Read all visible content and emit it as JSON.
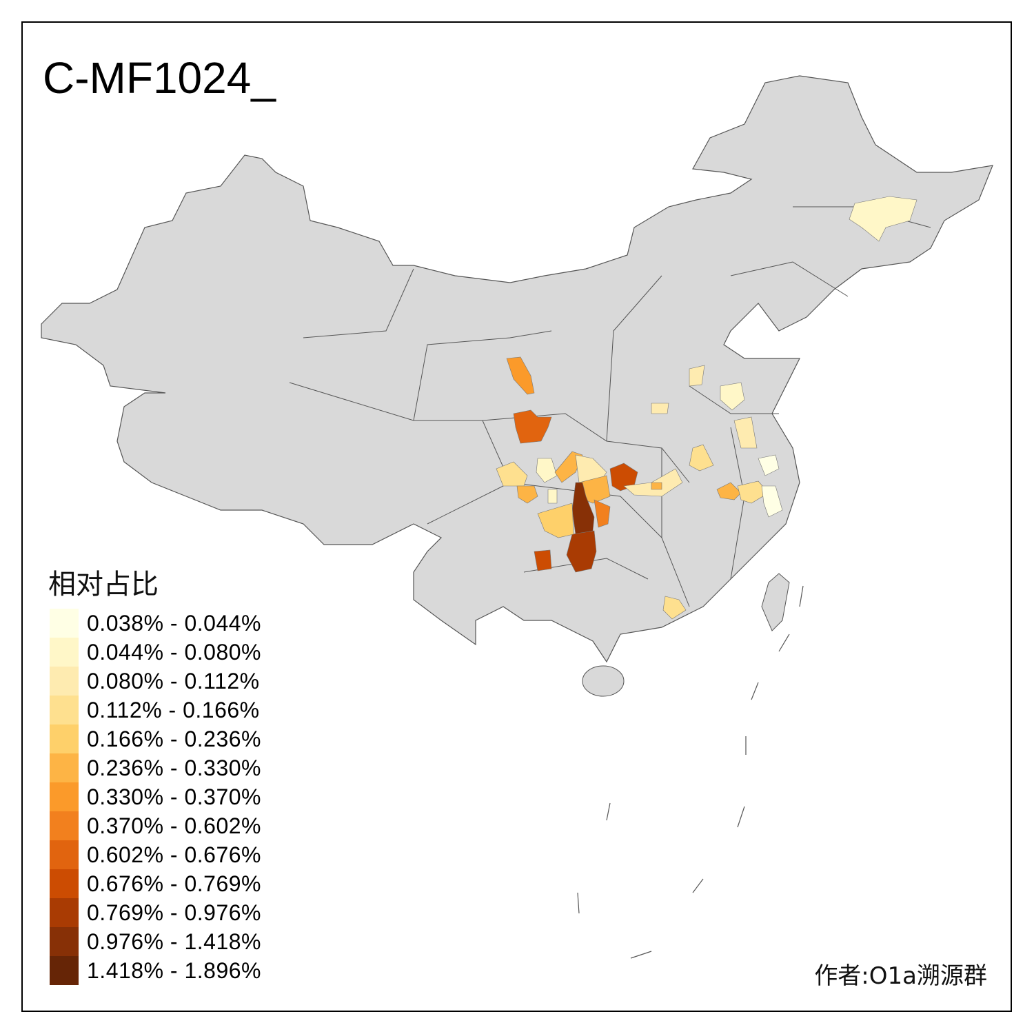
{
  "title": "C-MF1024_",
  "legend": {
    "title": "相对占比",
    "items": [
      {
        "label": "0.038% - 0.044%",
        "color": "#FFFFE5"
      },
      {
        "label": "0.044% - 0.080%",
        "color": "#FFF7C8"
      },
      {
        "label": "0.080% - 0.112%",
        "color": "#FEEBB0"
      },
      {
        "label": "0.112% - 0.166%",
        "color": "#FEE08F"
      },
      {
        "label": "0.166% - 0.236%",
        "color": "#FED06A"
      },
      {
        "label": "0.236% - 0.330%",
        "color": "#FDB445"
      },
      {
        "label": "0.330% - 0.370%",
        "color": "#FB9A2A"
      },
      {
        "label": "0.370% - 0.602%",
        "color": "#F2801E"
      },
      {
        "label": "0.602% - 0.676%",
        "color": "#E1640F"
      },
      {
        "label": "0.676% - 0.769%",
        "color": "#CC4C02"
      },
      {
        "label": "0.769% - 0.976%",
        "color": "#A93B03"
      },
      {
        "label": "0.976% - 1.418%",
        "color": "#873006"
      },
      {
        "label": "1.418% - 1.896%",
        "color": "#662506"
      }
    ]
  },
  "base_color": "#D9D9D9",
  "border_color": "#555555",
  "author": "作者:O1a溯源群"
}
